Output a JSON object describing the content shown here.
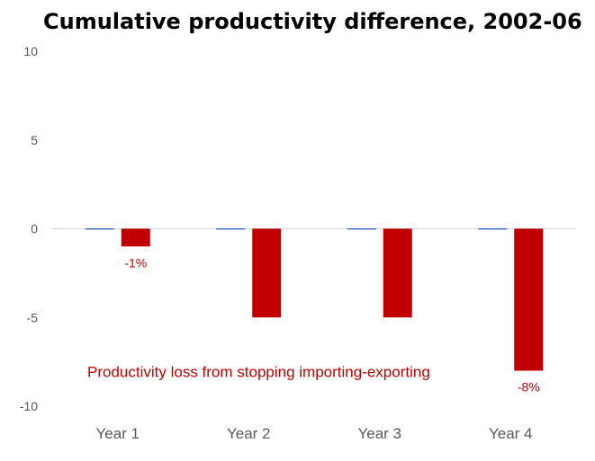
{
  "chart_data": {
    "type": "bar",
    "title": "Cumulative productivity difference, 2002-06",
    "categories": [
      "Year 1",
      "Year 2",
      "Year 3",
      "Year 4"
    ],
    "series": [
      {
        "values": [
          0,
          0,
          0,
          0
        ],
        "color": "#4472c4"
      },
      {
        "values": [
          -1,
          -5,
          -5,
          -8
        ],
        "color": "#c00000"
      }
    ],
    "data_labels": [
      "-1%",
      "",
      "",
      "-8%"
    ],
    "annotation": "Productivity loss from stopping importing-exporting",
    "annotation_color": "#c00000",
    "ylim": [
      -10,
      10
    ],
    "yticks": [
      10,
      5,
      0,
      -5,
      -10
    ],
    "xlabel": "",
    "ylabel": "",
    "grid": false
  }
}
